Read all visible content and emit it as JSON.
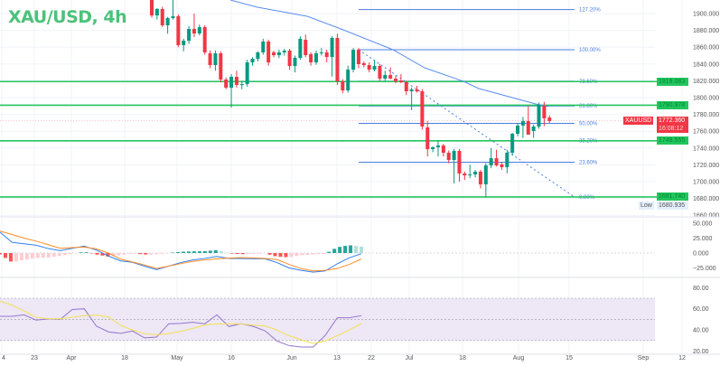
{
  "title": "XAU/USD, 4h",
  "colors": {
    "up": "#089981",
    "down": "#f23645",
    "level": "#22c55e",
    "fib": "#4a7de0",
    "ma": "#5b8def",
    "macd": "#2f7ff0",
    "signal": "#ff8c26",
    "rsi": "#9575cd",
    "rsi_ma": "#f5e050",
    "rsi_band": "#ede7f6"
  },
  "chart_data": [
    {
      "type": "candlestick",
      "symbol": "XAU/USD",
      "interval": "4h",
      "ylim": [
        1660,
        1916
      ],
      "price_ticks": [
        1660,
        1680,
        1700,
        1720,
        1740,
        1760,
        1780,
        1800,
        1820,
        1840,
        1860,
        1880,
        1900
      ],
      "price_tick_labels": [
        "1660.000",
        "1680.000",
        "1700.000",
        "1720.000",
        "1740.000",
        "1760.000",
        "1780.000",
        "1800.000",
        "1820.000",
        "1840.000",
        "1860.000",
        "1880.000",
        "1900.000"
      ],
      "time_labels": [
        "4",
        "23",
        "Apr",
        "18",
        "May",
        "16",
        "Jun",
        "13",
        "22",
        "Jul",
        "18",
        "Aug",
        "15",
        "Sep",
        "12"
      ],
      "candles_ohlc": [
        [
          1916.1,
          1918,
          1895,
          1897.8
        ],
        [
          1897.8,
          1906.5,
          1893,
          1905.4
        ],
        [
          1905.4,
          1908,
          1884,
          1886.0
        ],
        [
          1886.0,
          1896,
          1876,
          1894.6
        ],
        [
          1894.6,
          1916,
          1893,
          1896.8
        ],
        [
          1896.8,
          1899,
          1860,
          1862.4
        ],
        [
          1862.4,
          1870,
          1855,
          1867.7
        ],
        [
          1867.7,
          1885,
          1864,
          1881.7
        ],
        [
          1881.7,
          1900,
          1872,
          1876.3
        ],
        [
          1876.3,
          1887,
          1874,
          1883.9
        ],
        [
          1883.9,
          1886,
          1851,
          1853.8
        ],
        [
          1852.7,
          1856,
          1835,
          1838.7
        ],
        [
          1838.7,
          1856,
          1832,
          1852.7
        ],
        [
          1852.7,
          1855,
          1818,
          1821.5
        ],
        [
          1821.5,
          1824,
          1810,
          1811.8
        ],
        [
          1811.8,
          1828,
          1788,
          1824.7
        ],
        [
          1824.7,
          1832,
          1812,
          1815.1
        ],
        [
          1815.1,
          1820,
          1810,
          1816.1
        ],
        [
          1816.1,
          1845,
          1813,
          1841.9
        ],
        [
          1841.9,
          1848,
          1838,
          1846.2
        ],
        [
          1846.2,
          1855,
          1843,
          1853.8
        ],
        [
          1853.8,
          1870,
          1851,
          1866.7
        ],
        [
          1866.7,
          1869,
          1838,
          1841.9
        ],
        [
          1853.8,
          1856,
          1848,
          1850.5
        ],
        [
          1850.5,
          1857,
          1847,
          1853.8
        ],
        [
          1853.8,
          1858,
          1850,
          1855.9
        ],
        [
          1855.9,
          1858,
          1833,
          1837.6
        ],
        [
          1837.6,
          1850,
          1830,
          1847.3
        ],
        [
          1847.3,
          1873,
          1845,
          1869.9
        ],
        [
          1868.8,
          1875,
          1848,
          1850.5
        ],
        [
          1851.6,
          1854,
          1838,
          1841.9
        ],
        [
          1841.9,
          1856,
          1839,
          1852.7
        ],
        [
          1852.7,
          1859,
          1850,
          1853.8
        ],
        [
          1853.8,
          1857,
          1842,
          1848.4
        ],
        [
          1848.4,
          1873,
          1825,
          1871.0
        ],
        [
          1871.0,
          1876,
          1815,
          1819.4
        ],
        [
          1819.4,
          1822,
          1805,
          1808.6
        ],
        [
          1808.6,
          1838,
          1806,
          1833.3
        ],
        [
          1833.3,
          1859,
          1830,
          1857.0
        ],
        [
          1857.0,
          1859,
          1835,
          1839.8
        ],
        [
          1840.9,
          1843,
          1836,
          1838.7
        ],
        [
          1838.7,
          1842,
          1830,
          1833.3
        ],
        [
          1833.3,
          1845,
          1831,
          1837.6
        ],
        [
          1837.6,
          1840,
          1820,
          1822.6
        ],
        [
          1822.6,
          1832,
          1820,
          1826.9
        ],
        [
          1826.9,
          1836,
          1822,
          1822.6
        ],
        [
          1822.6,
          1826,
          1817,
          1819.4
        ],
        [
          1820.4,
          1828,
          1817,
          1818.3
        ],
        [
          1818.3,
          1820,
          1803,
          1807.5
        ],
        [
          1807.5,
          1812,
          1785,
          1809.7
        ],
        [
          1809.7,
          1814,
          1806,
          1807.5
        ],
        [
          1807.5,
          1810,
          1762,
          1765.6
        ],
        [
          1764.5,
          1772,
          1730,
          1738.7
        ],
        [
          1738.7,
          1742,
          1735,
          1740.9
        ],
        [
          1740.9,
          1749,
          1730,
          1743.0
        ],
        [
          1743.0,
          1745,
          1730,
          1734.4
        ],
        [
          1734.4,
          1737,
          1722,
          1725.8
        ],
        [
          1725.8,
          1739,
          1698,
          1736.6
        ],
        [
          1736.6,
          1739,
          1700,
          1709.7
        ],
        [
          1709.7,
          1712,
          1702,
          1707.5
        ],
        [
          1707.5,
          1720,
          1704,
          1708.6
        ],
        [
          1708.6,
          1714,
          1705,
          1711.8
        ],
        [
          1711.8,
          1714,
          1692,
          1696.8
        ],
        [
          1696.8,
          1722,
          1681.7,
          1719.3
        ],
        [
          1719.3,
          1740,
          1716,
          1727.9
        ],
        [
          1727.9,
          1738,
          1718,
          1719.3
        ],
        [
          1720.4,
          1723,
          1714,
          1717.2
        ],
        [
          1717.2,
          1738,
          1710,
          1734.4
        ],
        [
          1734.4,
          1758,
          1731,
          1757.0
        ],
        [
          1757.0,
          1770,
          1754,
          1766.7
        ],
        [
          1766.7,
          1777,
          1752,
          1772.0
        ],
        [
          1772.0,
          1790,
          1756,
          1755.9
        ],
        [
          1760.2,
          1768,
          1752,
          1765.6
        ],
        [
          1765.6,
          1794,
          1763,
          1791.4
        ],
        [
          1790.3,
          1795,
          1766,
          1775.3
        ],
        [
          1776.3,
          1779,
          1770,
          1772.0
        ]
      ],
      "moving_average": [
        [
          1916,
          1900
        ],
        [
          1912,
          1894
        ],
        [
          1905,
          1884
        ],
        [
          1894,
          1870
        ],
        [
          1880,
          1852
        ],
        [
          1862,
          1830
        ],
        [
          1838,
          1812
        ],
        [
          1826,
          1800
        ],
        [
          1815,
          1791
        ],
        [
          1809,
          1786
        ]
      ],
      "horizontal_levels": [
        1819.083,
        1790.978,
        1748.555,
        1681.74
      ],
      "level_labels": [
        "1819.083",
        "1790.978",
        "1748.555",
        "1681.740"
      ],
      "fibonacci": {
        "levels": [
          "127.20%",
          "100.00%",
          "78.60%",
          "61.80%",
          "50.00%",
          "38.20%",
          "23.60%",
          "0.00%"
        ],
        "prices": [
          1904.7,
          1857.0,
          1819.5,
          1790.1,
          1769.4,
          1748.7,
          1723.1,
          1681.74
        ]
      },
      "trendline": {
        "from": 1857.0,
        "to": 1681.74,
        "style": "dashed"
      },
      "last_price": {
        "symbol_tag": "XAUUSD",
        "price": "1772.360",
        "countdown": "16:08:12",
        "value": 1772.36
      },
      "low_marker": {
        "label": "Low",
        "value": "1680.935"
      }
    },
    {
      "type": "line",
      "indicator": "MACD",
      "ylim": [
        -35,
        50
      ],
      "ticks": [
        50,
        25,
        0,
        -25
      ],
      "tick_labels": [
        "50.000",
        "25.000",
        "0.000",
        "−25.000"
      ],
      "series": [
        {
          "role": "macd",
          "values": [
            35,
            18,
            15.5,
            13,
            7.5,
            4,
            8,
            11.6,
            5,
            -5,
            -13,
            -15.5,
            -22,
            -27.8,
            -22,
            -16,
            -11.6,
            -9,
            -5.6,
            -9,
            -9.2,
            -9.4,
            -9.6,
            -16,
            -25,
            -29,
            -32,
            -30,
            -18,
            -8,
            -1
          ]
        },
        {
          "role": "signal",
          "values": [
            36.8,
            31,
            25,
            20,
            14,
            8,
            9,
            10,
            7,
            0,
            -10,
            -15,
            -20,
            -26,
            -22,
            -17.7,
            -14,
            -11.5,
            -9.8,
            -8.5,
            -7.6,
            -8.2,
            -9,
            -11,
            -19,
            -26,
            -30,
            -29,
            -26,
            -19,
            -10
          ]
        }
      ]
    },
    {
      "type": "line",
      "indicator": "RSI",
      "ylim": [
        15,
        85
      ],
      "ticks": [
        80,
        60,
        40,
        20
      ],
      "tick_labels": [
        "80.00",
        "60.00",
        "40.00",
        "20.00"
      ],
      "bands": [
        70,
        50,
        30
      ],
      "series": [
        {
          "role": "rsi",
          "values": [
            52.9,
            52.9,
            54.3,
            49.3,
            50.4,
            50,
            59.3,
            60,
            43.6,
            38.2,
            36.8,
            39,
            32.5,
            33.2,
            45.8,
            46.2,
            47.2,
            45.8,
            54.3,
            43.2,
            46,
            43.5,
            39.2,
            29.5,
            25.2,
            23.8,
            23.8,
            34.8,
            51.5,
            51.5,
            53.5
          ]
        },
        {
          "role": "rsi_ma",
          "values": [
            67.1,
            63.5,
            58,
            52,
            50.6,
            50.6,
            52,
            53.5,
            54,
            52.5,
            44.3,
            40,
            36.4,
            35.5,
            36.5,
            38.6,
            41.5,
            44.5,
            45.8,
            45.8,
            45.8,
            44.5,
            43.8,
            40,
            34.5,
            30.7,
            27.3,
            29.5,
            34.5,
            40,
            46
          ]
        }
      ]
    }
  ]
}
